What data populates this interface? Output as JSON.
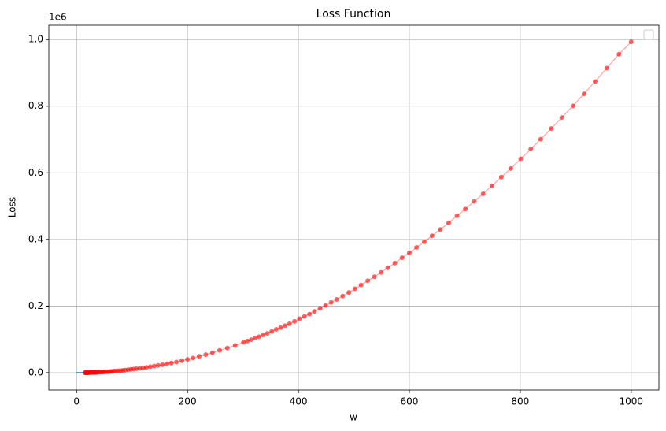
{
  "chart_data": {
    "type": "line",
    "title": "Loss Function",
    "x_label": "w",
    "y_label": "Loss",
    "y_offset_label": "1e6",
    "xlim": [
      -50,
      1050
    ],
    "ylim": [
      -0.052,
      1.043
    ],
    "xticks": [
      0,
      200,
      400,
      600,
      800,
      1000
    ],
    "yticks": [
      {
        "value": 0,
        "label": "0.0"
      },
      {
        "value": 0.2,
        "label": "0.2"
      },
      {
        "value": 0.4,
        "label": "0.4"
      },
      {
        "value": 0.6,
        "label": "0.6"
      },
      {
        "value": 0.8,
        "label": "0.8"
      },
      {
        "value": 1,
        "label": "1.0"
      }
    ],
    "grid": true,
    "series": [
      {
        "color": "#1f77b4",
        "markers": false,
        "x": [
          0,
          15
        ],
        "values": [
          0,
          0
        ]
      },
      {
        "color": "#ff0000",
        "markers": true,
        "x": [
          1000,
          978,
          956,
          935,
          915,
          895,
          875,
          856,
          837,
          819,
          801,
          783,
          766,
          749,
          733,
          717,
          701,
          686,
          671,
          656,
          641,
          627,
          613,
          600,
          587,
          574,
          561,
          549,
          537,
          525,
          513,
          502,
          491,
          480,
          469,
          459,
          449,
          439,
          429,
          420,
          411,
          402,
          393,
          384,
          376,
          368,
          360,
          352,
          344,
          336,
          329,
          322,
          315,
          308,
          301,
          286,
          272,
          258,
          245,
          233,
          221,
          210,
          200,
          190,
          180,
          171,
          163,
          155,
          147,
          140,
          133,
          126,
          120,
          114,
          108,
          103,
          98,
          93,
          88,
          84,
          80,
          76,
          72,
          68,
          65,
          62,
          59,
          56,
          53,
          50,
          48,
          46,
          43,
          41,
          39,
          37,
          35,
          33,
          32,
          30,
          29,
          27,
          26,
          25,
          23,
          22,
          21,
          20,
          19,
          18,
          17,
          16,
          15
        ],
        "values": [
          0.993,
          0.956,
          0.914,
          0.874,
          0.837,
          0.801,
          0.766,
          0.733,
          0.701,
          0.671,
          0.642,
          0.613,
          0.587,
          0.561,
          0.537,
          0.514,
          0.491,
          0.471,
          0.45,
          0.43,
          0.411,
          0.393,
          0.376,
          0.36,
          0.345,
          0.329,
          0.315,
          0.301,
          0.288,
          0.276,
          0.263,
          0.252,
          0.241,
          0.23,
          0.22,
          0.211,
          0.202,
          0.193,
          0.184,
          0.176,
          0.169,
          0.162,
          0.154,
          0.147,
          0.141,
          0.135,
          0.13,
          0.124,
          0.118,
          0.113,
          0.108,
          0.104,
          0.099,
          0.095,
          0.091,
          0.082,
          0.074,
          0.067,
          0.06,
          0.054,
          0.049,
          0.044,
          0.04,
          0.036,
          0.032,
          0.029,
          0.027,
          0.024,
          0.022,
          0.02,
          0.018,
          0.016,
          0.014,
          0.013,
          0.012,
          0.011,
          0.01,
          0.009,
          0.008,
          0.007,
          0.006,
          0.006,
          0.005,
          0.005,
          0.004,
          0.004,
          0.003,
          0.003,
          0.003,
          0.003,
          0.002,
          0.002,
          0.002,
          0.002,
          0.002,
          0.001,
          0.001,
          0.001,
          0.001,
          0.001,
          0.001,
          0.001,
          0.001,
          0.001,
          0.001,
          0,
          0,
          0,
          0,
          0,
          0,
          0,
          0
        ]
      }
    ]
  }
}
